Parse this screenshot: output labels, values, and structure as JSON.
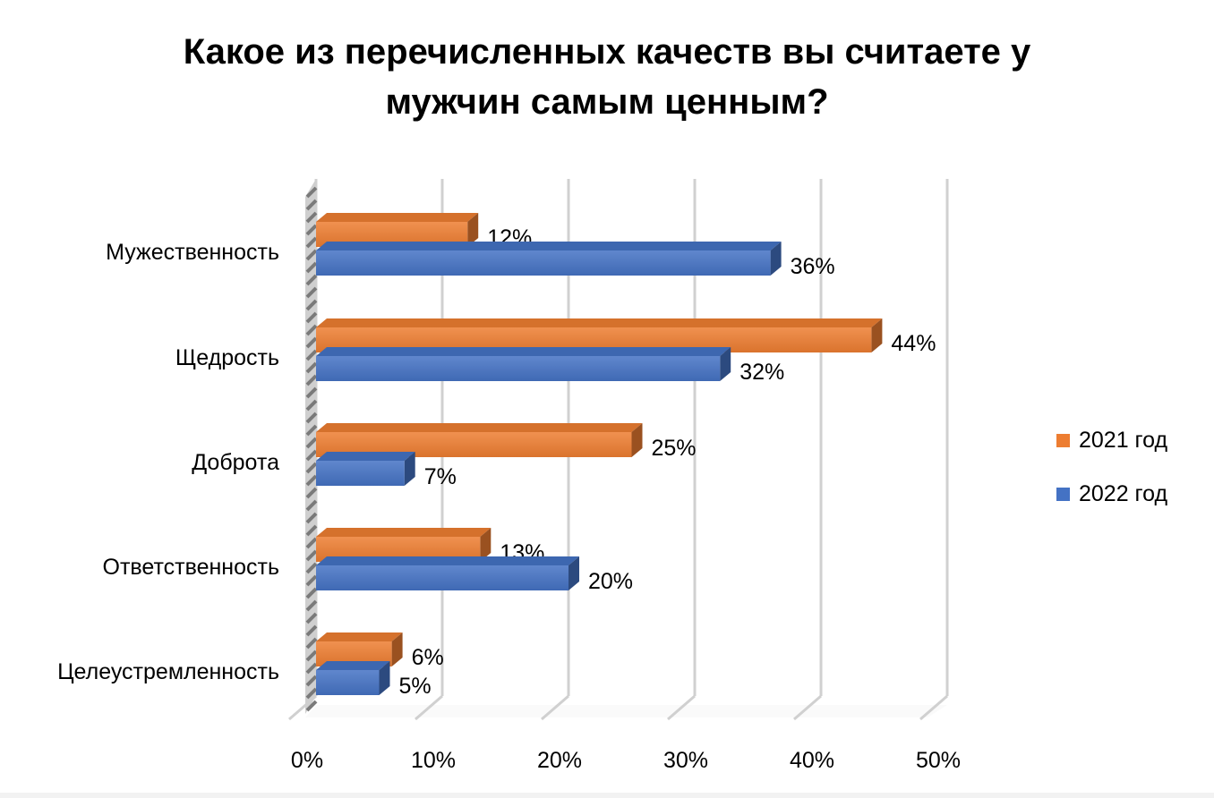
{
  "chart_data": {
    "type": "bar",
    "orientation": "horizontal",
    "style": "3d-clustered",
    "title_lines": [
      "Какое из перечисленных качеств вы считаете у",
      "мужчин самым ценным?"
    ],
    "categories": [
      "Мужественность",
      "Щедрость",
      "Доброта",
      "Ответственность",
      "Целеустремленность"
    ],
    "series": [
      {
        "name": "2021 год",
        "color": "#ED7D31",
        "values": [
          12,
          44,
          25,
          13,
          6
        ],
        "labels": [
          "12%",
          "44%",
          "25%",
          "13%",
          "6%"
        ]
      },
      {
        "name": "2022 год",
        "color": "#4472C4",
        "values": [
          36,
          32,
          7,
          20,
          5
        ],
        "labels": [
          "36%",
          "32%",
          "7%",
          "20%",
          "5%"
        ]
      }
    ],
    "xlim": [
      0,
      50
    ],
    "x_ticks": [
      "0%",
      "10%",
      "20%",
      "30%",
      "40%",
      "50%"
    ],
    "grid": true,
    "legend_position": "right"
  }
}
